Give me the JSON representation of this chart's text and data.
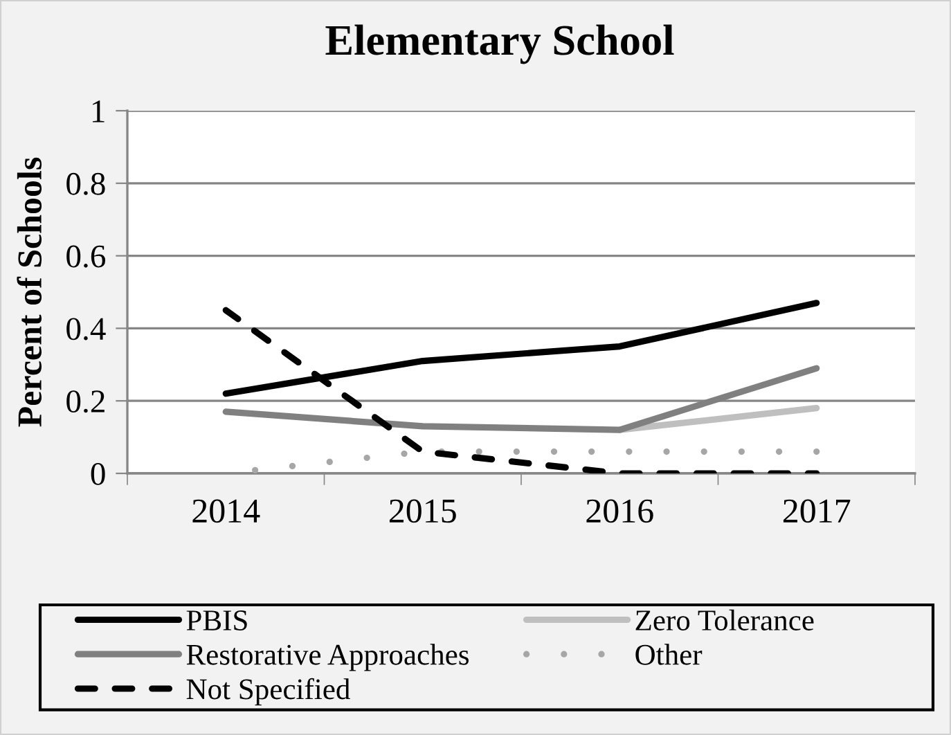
{
  "chart_data": {
    "type": "line",
    "title": "Elementary School",
    "ylabel": "Percent of Schools",
    "categories": [
      "2014",
      "2015",
      "2016",
      "2017"
    ],
    "series": [
      {
        "name": "PBIS",
        "color": "#000000",
        "values": [
          0.22,
          0.31,
          0.35,
          0.47
        ],
        "line_style": "solid"
      },
      {
        "name": "Zero Tolerance",
        "color": "#bfbfbf",
        "values": [
          null,
          null,
          0.12,
          0.18
        ],
        "line_style": "solid"
      },
      {
        "name": "Restorative Approaches",
        "color": "#808080",
        "values": [
          0.17,
          0.13,
          0.12,
          0.29
        ],
        "line_style": "solid"
      },
      {
        "name": "Other",
        "color": "#a6a6a6",
        "values": [
          0,
          0.06,
          0.06,
          0.06
        ],
        "line_style": "dotted"
      },
      {
        "name": "Not Specified",
        "color": "#000000",
        "values": [
          0.45,
          0.06,
          0,
          0
        ],
        "line_style": "dashed"
      }
    ],
    "ylim": [
      0,
      1
    ],
    "yticks": [
      0,
      0.2,
      0.4,
      0.6,
      0.8,
      1
    ],
    "grid": "y",
    "legend": "bottom",
    "marker": "none"
  }
}
